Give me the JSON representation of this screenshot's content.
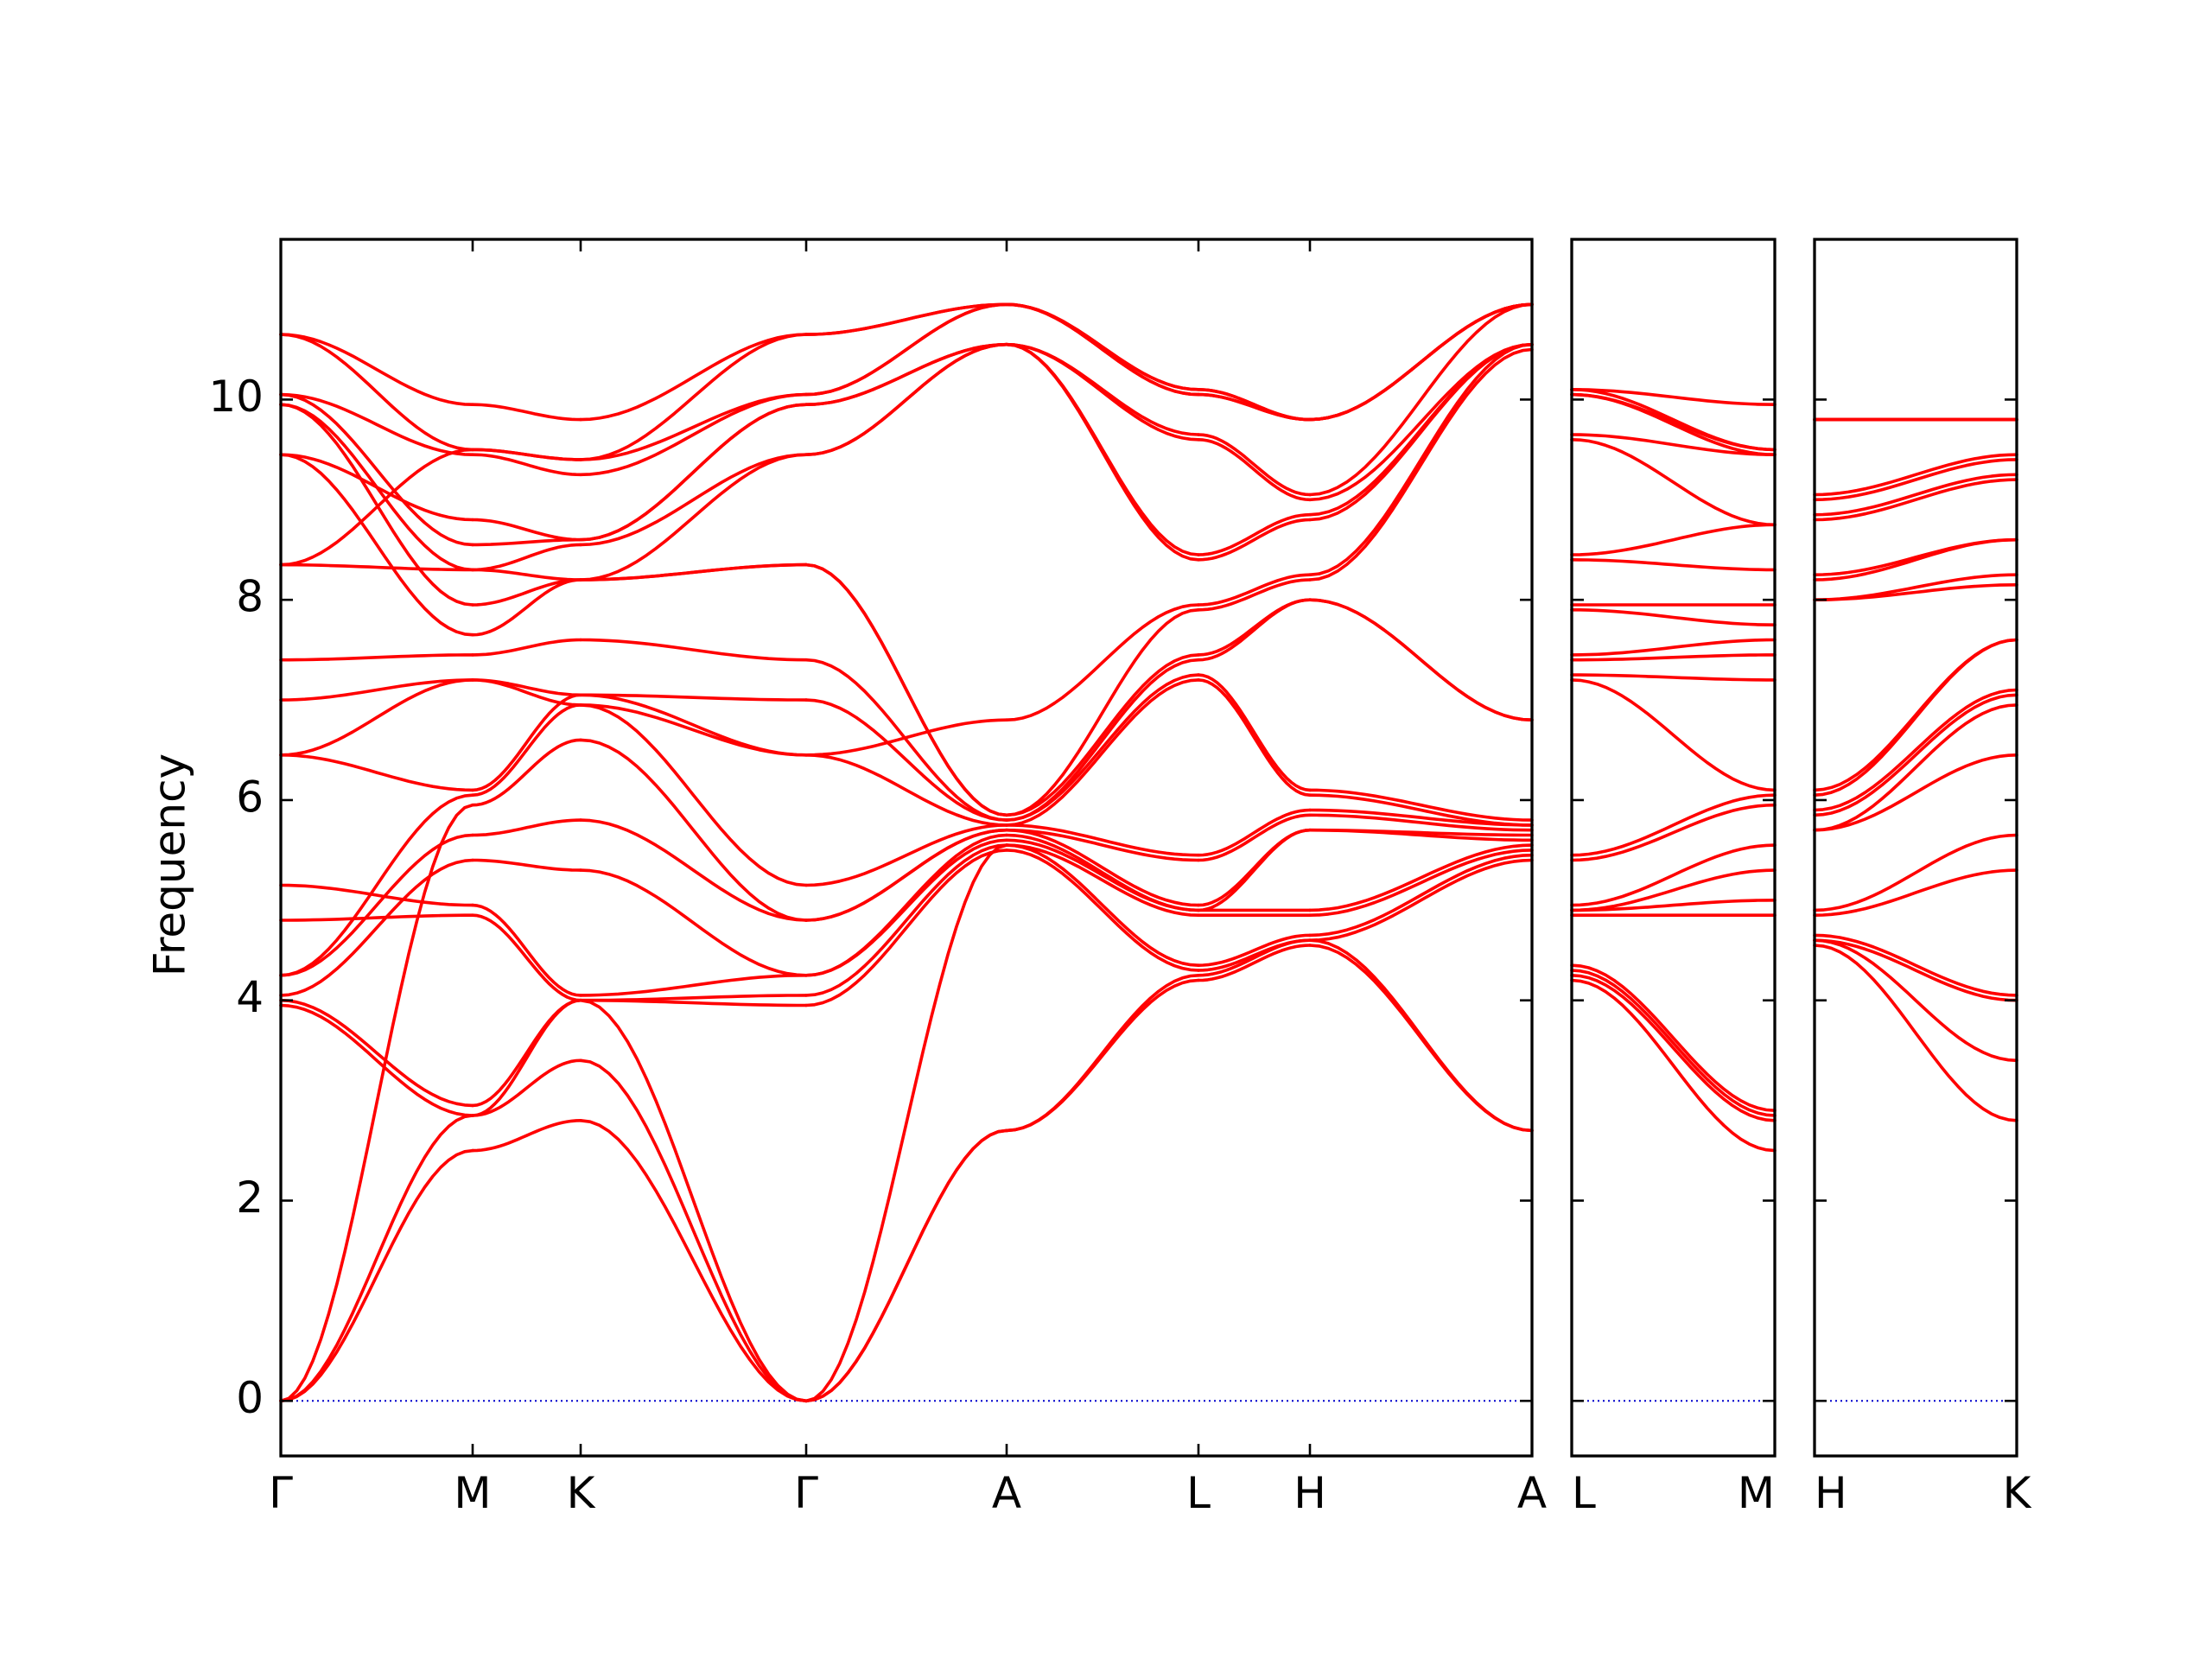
{
  "chart_data": {
    "type": "line",
    "ylabel": "Frequency",
    "yticks": [
      0,
      2,
      4,
      6,
      8,
      10
    ],
    "ylim": [
      -0.55,
      11.6
    ],
    "grid": false,
    "colors": {
      "bands": "#ff0000",
      "zero_line": "#0000cc",
      "axes": "#000000"
    },
    "panels": [
      {
        "labels": [
          "Γ",
          "M",
          "K",
          "Γ",
          "A",
          "L",
          "H",
          "A"
        ],
        "segments": [
          {
            "from": "Γ",
            "to": "M",
            "bands": [
              [
                0.0,
                2.5
              ],
              [
                0.0,
                2.85
              ],
              [
                0.0,
                5.95
              ],
              [
                3.95,
                2.85
              ],
              [
                4.0,
                2.95
              ],
              [
                4.05,
                5.4
              ],
              [
                4.25,
                5.65
              ],
              [
                4.25,
                6.05
              ],
              [
                4.8,
                4.85
              ],
              [
                5.15,
                4.95
              ],
              [
                6.45,
                6.1
              ],
              [
                6.45,
                7.2
              ],
              [
                7.0,
                7.2
              ],
              [
                7.4,
                7.45
              ],
              [
                8.35,
                8.3
              ],
              [
                8.35,
                9.5
              ],
              [
                9.45,
                7.65
              ],
              [
                9.45,
                8.8
              ],
              [
                9.95,
                7.95
              ],
              [
                9.95,
                8.3
              ],
              [
                10.05,
                8.55
              ],
              [
                10.05,
                9.45
              ],
              [
                10.65,
                9.5
              ],
              [
                10.65,
                9.95
              ]
            ]
          },
          {
            "from": "M",
            "to": "K",
            "bands": [
              [
                2.5,
                2.8
              ],
              [
                2.85,
                3.4
              ],
              [
                2.85,
                4.0
              ],
              [
                2.95,
                4.0
              ],
              [
                4.85,
                4.0
              ],
              [
                4.95,
                4.05
              ],
              [
                5.4,
                5.3
              ],
              [
                5.65,
                5.8
              ],
              [
                5.95,
                6.6
              ],
              [
                6.05,
                6.95
              ],
              [
                6.1,
                7.05
              ],
              [
                7.2,
                6.95
              ],
              [
                7.2,
                7.05
              ],
              [
                7.45,
                7.6
              ],
              [
                7.65,
                8.2
              ],
              [
                7.95,
                8.2
              ],
              [
                8.3,
                8.2
              ],
              [
                8.3,
                8.55
              ],
              [
                8.55,
                8.6
              ],
              [
                8.8,
                8.6
              ],
              [
                9.45,
                9.25
              ],
              [
                9.5,
                9.4
              ],
              [
                9.5,
                9.4
              ],
              [
                9.95,
                9.8
              ]
            ]
          },
          {
            "from": "K",
            "to": "Γ",
            "bands": [
              [
                2.8,
                0.0
              ],
              [
                3.4,
                0.0
              ],
              [
                4.0,
                0.0
              ],
              [
                4.0,
                3.95
              ],
              [
                4.0,
                4.05
              ],
              [
                4.05,
                4.25
              ],
              [
                5.3,
                4.25
              ],
              [
                5.8,
                4.8
              ],
              [
                6.6,
                4.8
              ],
              [
                6.95,
                5.15
              ],
              [
                6.95,
                6.45
              ],
              [
                7.05,
                6.45
              ],
              [
                7.05,
                7.0
              ],
              [
                7.6,
                7.4
              ],
              [
                8.2,
                8.35
              ],
              [
                8.2,
                8.35
              ],
              [
                8.2,
                9.45
              ],
              [
                8.55,
                9.45
              ],
              [
                8.6,
                9.95
              ],
              [
                8.6,
                9.95
              ],
              [
                9.25,
                10.05
              ],
              [
                9.4,
                10.05
              ],
              [
                9.4,
                10.65
              ],
              [
                9.8,
                10.65
              ]
            ]
          },
          {
            "from": "Γ",
            "to": "A",
            "bands": [
              [
                0.0,
                2.7
              ],
              [
                0.0,
                2.7
              ],
              [
                0.0,
                5.55
              ],
              [
                3.95,
                5.5
              ],
              [
                4.05,
                5.55
              ],
              [
                4.25,
                5.6
              ],
              [
                4.25,
                5.65
              ],
              [
                4.8,
                5.7
              ],
              [
                4.8,
                5.7
              ],
              [
                5.15,
                5.75
              ],
              [
                6.45,
                5.75
              ],
              [
                6.45,
                6.8
              ],
              [
                7.0,
                5.8
              ],
              [
                7.4,
                5.8
              ],
              [
                8.35,
                5.85
              ],
              [
                8.35,
                5.85
              ],
              [
                9.45,
                10.55
              ],
              [
                9.45,
                10.55
              ],
              [
                9.95,
                10.55
              ],
              [
                9.95,
                10.55
              ],
              [
                10.05,
                10.95
              ],
              [
                10.05,
                10.95
              ],
              [
                10.65,
                10.95
              ],
              [
                10.65,
                10.95
              ]
            ]
          },
          {
            "from": "A",
            "to": "L",
            "bands": [
              [
                2.7,
                4.2
              ],
              [
                2.7,
                4.25
              ],
              [
                5.5,
                4.3
              ],
              [
                5.55,
                4.35
              ],
              [
                5.55,
                4.85
              ],
              [
                5.6,
                4.9
              ],
              [
                5.65,
                4.9
              ],
              [
                5.7,
                4.95
              ],
              [
                5.7,
                5.4
              ],
              [
                5.75,
                5.45
              ],
              [
                5.75,
                7.2
              ],
              [
                5.8,
                7.25
              ],
              [
                5.8,
                7.4
              ],
              [
                5.85,
                7.45
              ],
              [
                5.85,
                7.9
              ],
              [
                6.8,
                7.95
              ],
              [
                10.55,
                8.4
              ],
              [
                10.55,
                8.45
              ],
              [
                10.55,
                9.6
              ],
              [
                10.55,
                9.65
              ],
              [
                10.95,
                10.05
              ],
              [
                10.95,
                10.05
              ],
              [
                10.95,
                10.1
              ],
              [
                10.95,
                10.1
              ]
            ]
          },
          {
            "from": "L",
            "to": "H",
            "bands": [
              [
                4.2,
                4.55
              ],
              [
                4.25,
                4.6
              ],
              [
                4.3,
                4.6
              ],
              [
                4.35,
                4.65
              ],
              [
                4.85,
                4.85
              ],
              [
                4.9,
                4.9
              ],
              [
                4.9,
                5.7
              ],
              [
                4.95,
                5.7
              ],
              [
                5.4,
                5.85
              ],
              [
                5.45,
                5.9
              ],
              [
                7.2,
                6.05
              ],
              [
                7.25,
                6.1
              ],
              [
                7.4,
                8.0
              ],
              [
                7.45,
                8.0
              ],
              [
                7.9,
                8.2
              ],
              [
                7.95,
                8.25
              ],
              [
                8.4,
                8.8
              ],
              [
                8.45,
                8.85
              ],
              [
                9.6,
                9.0
              ],
              [
                9.65,
                9.05
              ],
              [
                10.05,
                9.8
              ],
              [
                10.05,
                9.8
              ],
              [
                10.1,
                9.8
              ],
              [
                10.1,
                9.8
              ]
            ]
          },
          {
            "from": "H",
            "to": "A",
            "bands": [
              [
                4.55,
                2.7
              ],
              [
                4.6,
                2.7
              ],
              [
                4.6,
                5.4
              ],
              [
                4.65,
                5.45
              ],
              [
                4.85,
                5.5
              ],
              [
                4.9,
                5.55
              ],
              [
                5.7,
                5.6
              ],
              [
                5.7,
                5.65
              ],
              [
                5.85,
                5.7
              ],
              [
                5.9,
                5.75
              ],
              [
                6.05,
                5.75
              ],
              [
                6.1,
                5.8
              ],
              [
                8.0,
                6.8
              ],
              [
                8.0,
                6.8
              ],
              [
                8.2,
                10.5
              ],
              [
                8.25,
                10.55
              ],
              [
                8.8,
                10.55
              ],
              [
                8.85,
                10.55
              ],
              [
                9.0,
                10.55
              ],
              [
                9.05,
                10.95
              ],
              [
                9.8,
                10.95
              ],
              [
                9.8,
                10.95
              ],
              [
                9.8,
                10.95
              ],
              [
                9.8,
                10.95
              ]
            ]
          }
        ]
      },
      {
        "labels": [
          "L",
          "M"
        ],
        "segments": [
          {
            "from": "L",
            "to": "M",
            "bands": [
              [
                4.2,
                2.5
              ],
              [
                4.25,
                2.8
              ],
              [
                4.3,
                2.85
              ],
              [
                4.35,
                2.9
              ],
              [
                4.85,
                4.85
              ],
              [
                4.9,
                5.0
              ],
              [
                4.9,
                5.3
              ],
              [
                4.95,
                5.55
              ],
              [
                5.4,
                5.95
              ],
              [
                5.45,
                6.05
              ],
              [
                7.2,
                6.1
              ],
              [
                7.25,
                7.2
              ],
              [
                7.4,
                7.45
              ],
              [
                7.45,
                7.6
              ],
              [
                7.9,
                7.75
              ],
              [
                7.95,
                7.95
              ],
              [
                8.4,
                8.3
              ],
              [
                8.45,
                8.75
              ],
              [
                9.6,
                8.75
              ],
              [
                9.65,
                9.45
              ],
              [
                10.05,
                9.45
              ],
              [
                10.05,
                9.5
              ],
              [
                10.1,
                9.5
              ],
              [
                10.1,
                9.95
              ]
            ]
          }
        ]
      },
      {
        "labels": [
          "H",
          "K"
        ],
        "segments": [
          {
            "from": "H",
            "to": "K",
            "bands": [
              [
                4.55,
                2.8
              ],
              [
                4.6,
                3.4
              ],
              [
                4.6,
                4.0
              ],
              [
                4.65,
                4.05
              ],
              [
                4.85,
                5.3
              ],
              [
                4.9,
                5.65
              ],
              [
                5.7,
                6.45
              ],
              [
                5.7,
                6.95
              ],
              [
                5.85,
                7.05
              ],
              [
                5.9,
                7.1
              ],
              [
                6.05,
                7.6
              ],
              [
                6.1,
                7.6
              ],
              [
                8.0,
                8.15
              ],
              [
                8.0,
                8.25
              ],
              [
                8.2,
                8.6
              ],
              [
                8.25,
                8.6
              ],
              [
                8.8,
                9.2
              ],
              [
                8.85,
                9.25
              ],
              [
                9.0,
                9.4
              ],
              [
                9.05,
                9.45
              ],
              [
                9.8,
                9.8
              ],
              [
                9.8,
                9.8
              ],
              [
                9.8,
                9.8
              ],
              [
                9.8,
                9.8
              ]
            ]
          }
        ]
      }
    ]
  }
}
